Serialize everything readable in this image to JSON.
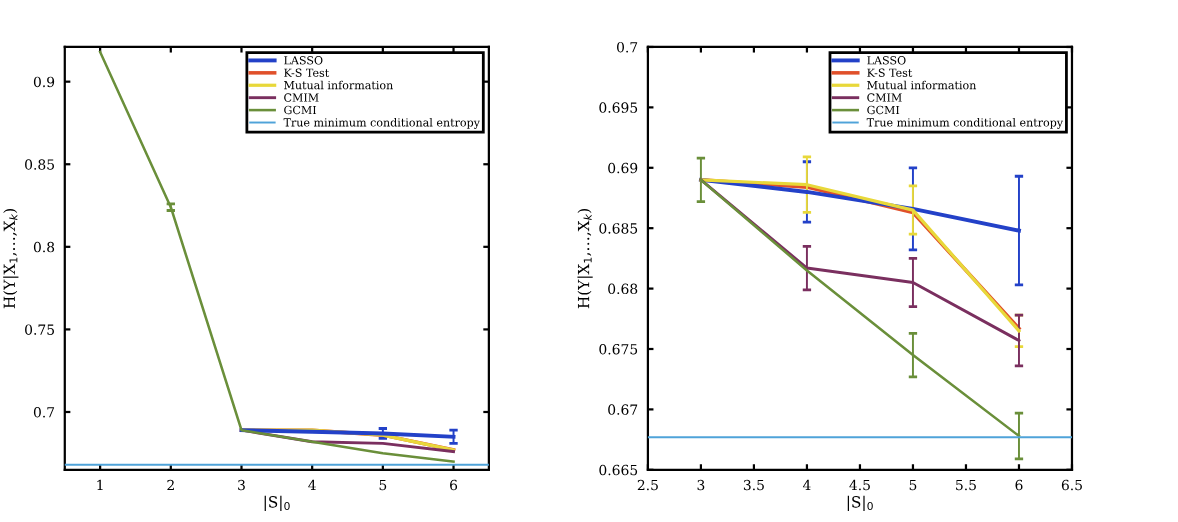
{
  "chart_data": [
    {
      "type": "line",
      "xlabel": "|S|$_{0}$",
      "ylabel": "H(Y|X$_{1}$,…,X$_{k}$)",
      "x": [
        1,
        2,
        3,
        4,
        5,
        6
      ],
      "xlim": [
        0.5,
        6.5
      ],
      "xticks": [
        1,
        2,
        3,
        4,
        5,
        6
      ],
      "ylim": [
        0.665,
        0.921
      ],
      "yticks": [
        0.7,
        0.75,
        0.8,
        0.85,
        0.9
      ],
      "legend": "top right",
      "grid": false,
      "marker": "none",
      "line_style": "solid",
      "ref_lines": [
        {
          "axis": "y",
          "value": 0.668,
          "label": "True minimum conditional entropy",
          "color": "#4fa3d9"
        }
      ],
      "series": [
        {
          "name": "LASSO",
          "color": "#2341c8",
          "values": [
            null,
            null,
            0.689,
            0.688,
            0.687,
            0.685
          ],
          "errors": [
            null,
            null,
            null,
            null,
            0.003,
            0.004
          ]
        },
        {
          "name": "K-S Test",
          "color": "#e0502a",
          "values": [
            null,
            null,
            0.689,
            0.689,
            0.686,
            0.677
          ]
        },
        {
          "name": "Mutual information",
          "color": "#e8d83a",
          "values": [
            null,
            null,
            0.689,
            0.689,
            0.686,
            0.677
          ]
        },
        {
          "name": "CMIM",
          "color": "#7a2f5f",
          "values": [
            null,
            null,
            0.689,
            0.682,
            0.681,
            0.676
          ]
        },
        {
          "name": "GCMI",
          "color": "#6a8f3a",
          "values": [
            0.918,
            0.824,
            0.689,
            0.682,
            0.675,
            0.67
          ],
          "errors": [
            null,
            0.002,
            null,
            null,
            null,
            null
          ]
        }
      ]
    },
    {
      "type": "line",
      "xlabel": "|S|$_{0}$",
      "ylabel": "H(Y|X$_{1}$,…,X$_{k}$)",
      "x": [
        3,
        4,
        5,
        6
      ],
      "xlim": [
        2.5,
        6.5
      ],
      "xticks": [
        2.5,
        3,
        3.5,
        4,
        4.5,
        5,
        5.5,
        6,
        6.5
      ],
      "ylim": [
        0.665,
        0.7
      ],
      "yticks": [
        0.665,
        0.67,
        0.675,
        0.68,
        0.685,
        0.69,
        0.695,
        0.7
      ],
      "legend": "top right",
      "grid": false,
      "marker": "none",
      "line_style": "solid",
      "ref_lines": [
        {
          "axis": "y",
          "value": 0.6677,
          "label": "True minimum conditional entropy",
          "color": "#4fa3d9"
        }
      ],
      "series": [
        {
          "name": "LASSO",
          "color": "#2341c8",
          "values": [
            0.689,
            0.688,
            0.6866,
            0.6848
          ],
          "errors": [
            null,
            0.0025,
            0.0034,
            0.0045
          ]
        },
        {
          "name": "K-S Test",
          "color": "#e0502a",
          "values": [
            0.689,
            0.6884,
            0.6863,
            0.6767
          ]
        },
        {
          "name": "Mutual information",
          "color": "#e8d83a",
          "values": [
            0.689,
            0.6886,
            0.6865,
            0.6765
          ],
          "errors": [
            null,
            0.0023,
            0.002,
            0.0013
          ]
        },
        {
          "name": "CMIM",
          "color": "#7a2f5f",
          "values": [
            0.689,
            0.6817,
            0.6805,
            0.6757
          ],
          "errors": [
            null,
            0.0018,
            0.002,
            0.0021
          ]
        },
        {
          "name": "GCMI",
          "color": "#6a8f3a",
          "values": [
            0.689,
            0.6815,
            0.6745,
            0.6678
          ],
          "errors": [
            0.0018,
            null,
            0.0018,
            0.0019
          ]
        }
      ]
    }
  ]
}
